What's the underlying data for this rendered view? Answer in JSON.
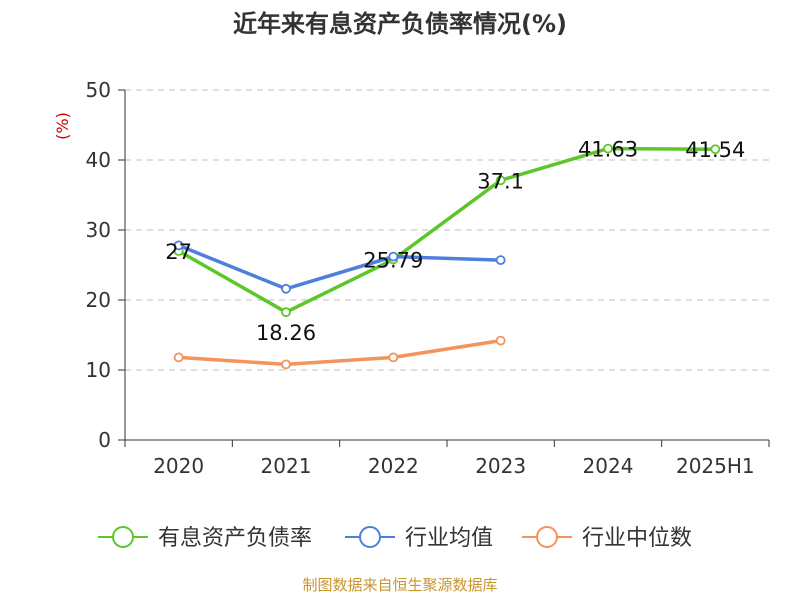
{
  "chart_data": {
    "type": "line",
    "title": "近年来有息资产负债率情况(%)",
    "ylabel": "(%)",
    "xlabel": "",
    "categories": [
      "2020",
      "2021",
      "2022",
      "2023",
      "2024",
      "2025H1"
    ],
    "ylim": [
      0,
      50
    ],
    "yticks": [
      0,
      10,
      20,
      30,
      40,
      50
    ],
    "grid": true,
    "legend_position": "bottom",
    "series": [
      {
        "name": "有息资产负债率",
        "color": "#5cc62b",
        "values": [
          27,
          18.26,
          25.79,
          37.1,
          41.63,
          41.54
        ],
        "labels": [
          "27",
          "18.26",
          "25.79",
          "37.1",
          "41.63",
          "41.54"
        ]
      },
      {
        "name": "行业均值",
        "color": "#4e7fdc",
        "values": [
          27.8,
          21.6,
          26.2,
          25.7,
          null,
          null
        ]
      },
      {
        "name": "行业中位数",
        "color": "#f4935c",
        "values": [
          11.8,
          10.8,
          11.8,
          14.2,
          null,
          null
        ]
      }
    ]
  },
  "source": "制图数据来自恒生聚源数据库",
  "colors": {
    "title": "#333333",
    "axis": "#333333",
    "grid": "#bfbfbf",
    "ylabel": "#cc0000",
    "source": "#c8962e"
  }
}
